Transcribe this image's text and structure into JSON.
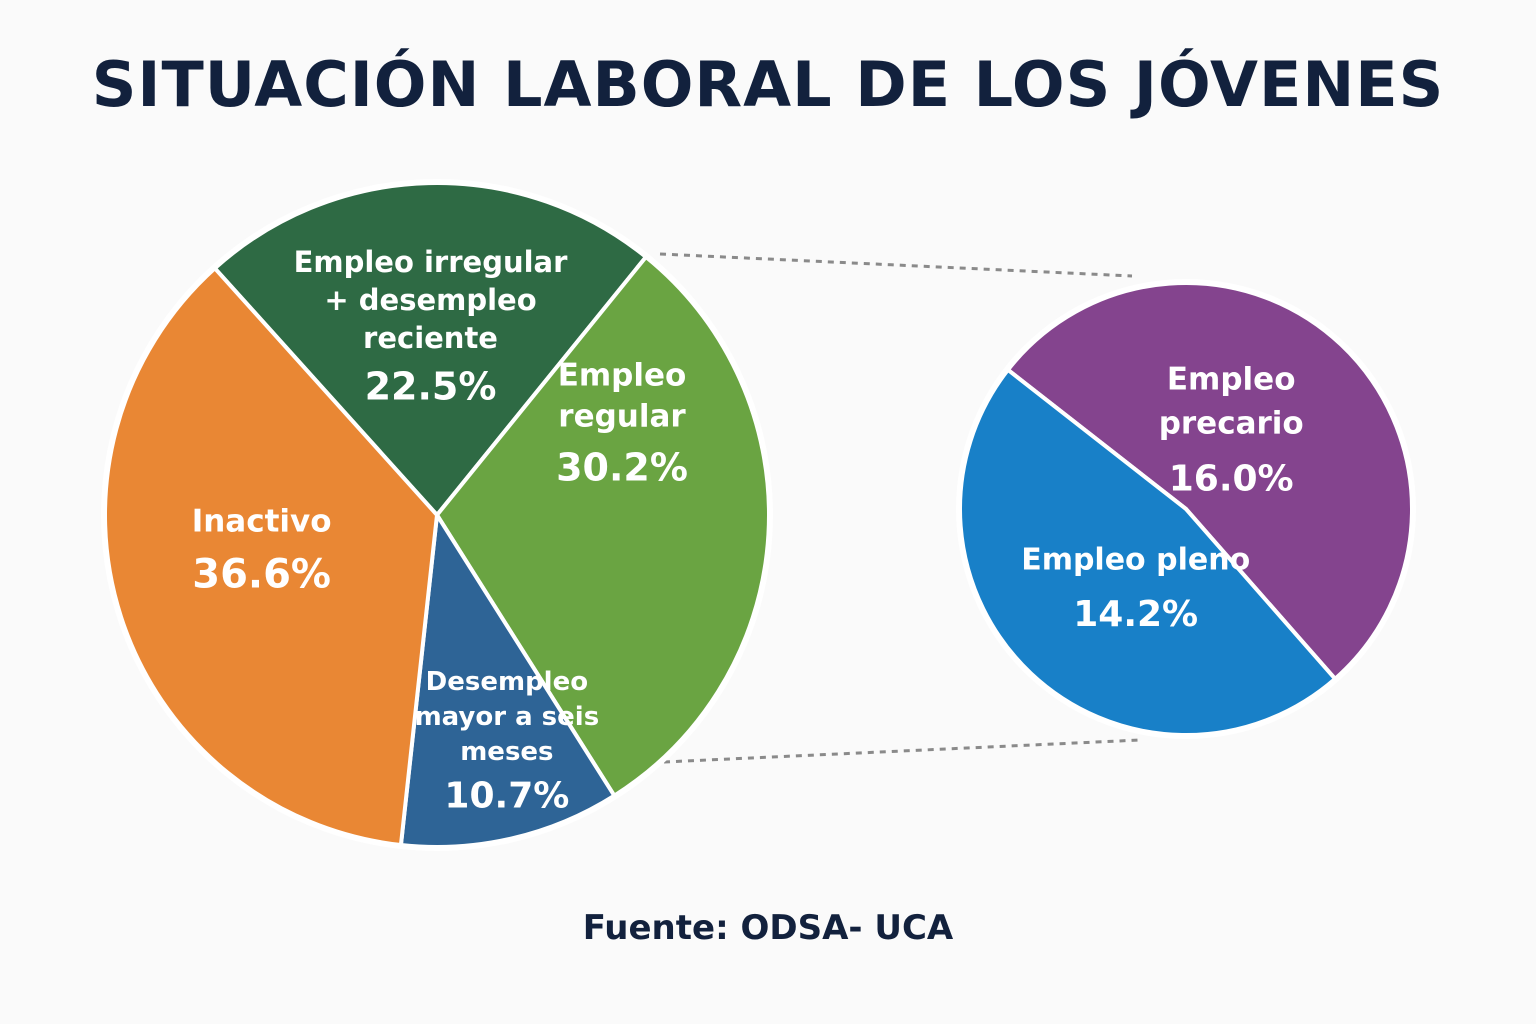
{
  "title": "SITUACIÓN LABORAL DE LOS JÓVENES",
  "source": "Fuente: ODSA- UCA",
  "chart_data": [
    {
      "type": "pie",
      "slices": [
        {
          "label_lines": [
            "Empleo irregular",
            "+ desempleo",
            "reciente"
          ],
          "value": 22.5,
          "value_label": "22.5%",
          "color": "#2e6a44"
        },
        {
          "label_lines": [
            "Empleo",
            "regular"
          ],
          "value": 30.2,
          "value_label": "30.2%",
          "color": "#6aa442"
        },
        {
          "label_lines": [
            "Desempleo",
            "mayor a seis",
            "meses"
          ],
          "value": 10.7,
          "value_label": "10.7%",
          "color": "#2e6496"
        },
        {
          "label_lines": [
            "Inactivo"
          ],
          "value": 36.6,
          "value_label": "36.6%",
          "color": "#e98734"
        }
      ]
    },
    {
      "type": "pie",
      "slices": [
        {
          "label_lines": [
            "Empleo",
            "precario"
          ],
          "value": 16.0,
          "value_label": "16.0%",
          "color": "#84448e"
        },
        {
          "label_lines": [
            "Empleo pleno"
          ],
          "value": 14.2,
          "value_label": "14.2%",
          "color": "#1880c8"
        }
      ]
    }
  ]
}
